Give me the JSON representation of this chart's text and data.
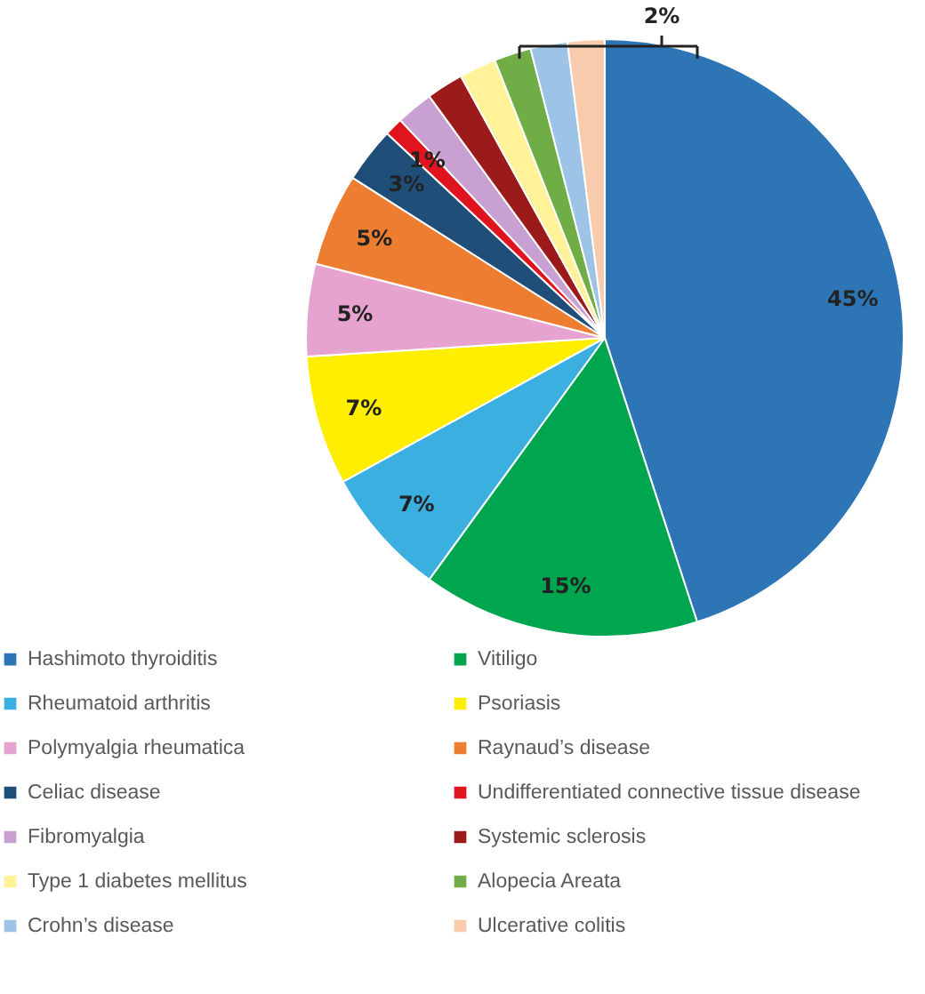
{
  "chart_data": {
    "type": "pie",
    "categories": [
      "Hashimoto thyroiditis",
      "Vitiligo",
      "Rheumatoid arthritis",
      "Psoriasis",
      "Polymyalgia rheumatica",
      "Raynaud’s disease",
      "Celiac disease",
      "Undifferentiated connective tissue disease",
      "Fibromyalgia",
      "Systemic sclerosis",
      "Type 1 diabetes mellitus",
      "Alopecia Areata",
      "Crohn’s disease",
      "Ulcerative colitis"
    ],
    "values": [
      45,
      15,
      7,
      7,
      5,
      5,
      3,
      1,
      2,
      2,
      2,
      2,
      2,
      2
    ],
    "colors": [
      "#2e75b6",
      "#00a550",
      "#3aafe0",
      "#ffee00",
      "#e6a3cf",
      "#ed7d31",
      "#1f4e79",
      "#e0141e",
      "#c9a0d2",
      "#9b1b1b",
      "#fff299",
      "#70ad47",
      "#9dc3e6",
      "#f8cbad"
    ],
    "value_labels": [
      "45%",
      "15%",
      "7%",
      "7%",
      "5%",
      "5%",
      "3%",
      "1%",
      null,
      null,
      null,
      null,
      null,
      null
    ],
    "annotations": [
      "2%"
    ],
    "legend": "bottom"
  }
}
